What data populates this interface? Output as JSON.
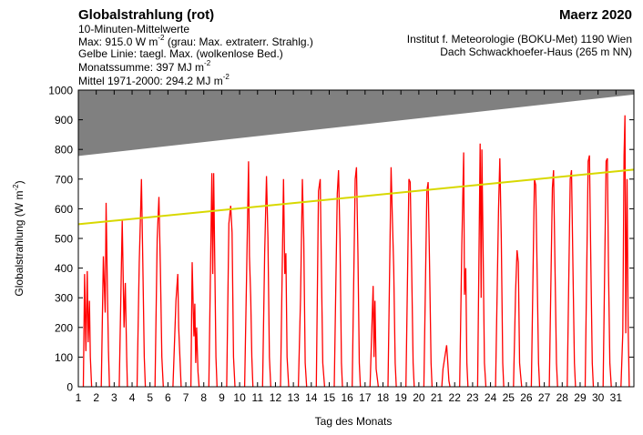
{
  "header": {
    "title": "Globalstrahlung (rot)",
    "period": "Maerz 2020",
    "sub1": "10-Minuten-Mittelwerte",
    "max_prefix": "Max:  915.0 W m",
    "max_exp": "-2",
    "max_suffix": "  (grau: Max. extraterr. Strahlg.)",
    "yellow_line": "Gelbe Linie: taegl. Max. (wolkenlose Bed.)",
    "month_sum_prefix": "Monatssumme:  397 MJ m",
    "month_sum_exp": "-2",
    "mean_prefix": "Mittel 1971-2000:  294.2 MJ m",
    "mean_exp": "-2",
    "institute": "Institut f. Meteorologie (BOKU-Met) 1190 Wien",
    "location": "Dach Schwackhoefer-Haus (265 m NN)"
  },
  "chart_data": {
    "type": "line",
    "xlabel": "Tag des Monats",
    "ylabel": "Globalstrahlung (W m-2)",
    "ylabel_prefix": "Globalstrahlung (W m",
    "ylabel_exp": "-2",
    "ylabel_suffix": ")",
    "xlim": [
      1,
      32
    ],
    "ylim": [
      0,
      1000
    ],
    "y_ticks": [
      0,
      100,
      200,
      300,
      400,
      500,
      600,
      700,
      800,
      900,
      1000
    ],
    "x_ticks": [
      "1",
      "2",
      "3",
      "4",
      "5",
      "6",
      "7",
      "8",
      "9",
      "10",
      "11",
      "12",
      "13",
      "14",
      "15",
      "16",
      "17",
      "18",
      "19",
      "20",
      "21",
      "22",
      "23",
      "24",
      "25",
      "26",
      "27",
      "28",
      "29",
      "30",
      "31"
    ],
    "grid": false,
    "series": [
      {
        "name": "Max. extraterr. Strahlg.",
        "color": "#808080",
        "style": "filled area above line",
        "x": [
          1,
          32
        ],
        "y": [
          778,
          985
        ]
      },
      {
        "name": "taegl. Max. (wolkenlose Bed.)",
        "color": "#d8d800",
        "x": [
          1,
          32
        ],
        "y": [
          548,
          732
        ]
      },
      {
        "name": "Globalstrahlung",
        "color": "#ff0000",
        "style": "10-minute means",
        "days": [
          {
            "day": 1,
            "peaks": [
              [
                0.35,
                380
              ],
              [
                0.42,
                120
              ],
              [
                0.5,
                390
              ],
              [
                0.55,
                150
              ],
              [
                0.62,
                290
              ],
              [
                0.67,
                100
              ]
            ]
          },
          {
            "day": 2,
            "peaks": [
              [
                0.4,
                440
              ],
              [
                0.5,
                250
              ],
              [
                0.55,
                620
              ],
              [
                0.62,
                330
              ],
              [
                0.68,
                120
              ]
            ]
          },
          {
            "day": 3,
            "peaks": [
              [
                0.45,
                560
              ],
              [
                0.55,
                200
              ],
              [
                0.62,
                350
              ],
              [
                0.7,
                100
              ]
            ]
          },
          {
            "day": 4,
            "peaks": [
              [
                0.4,
                420
              ],
              [
                0.47,
                580
              ],
              [
                0.52,
                700
              ],
              [
                0.6,
                420
              ],
              [
                0.68,
                100
              ]
            ]
          },
          {
            "day": 5,
            "peaks": [
              [
                0.4,
                500
              ],
              [
                0.5,
                640
              ],
              [
                0.58,
                400
              ],
              [
                0.66,
                100
              ]
            ]
          },
          {
            "day": 6,
            "peaks": [
              [
                0.45,
                290
              ],
              [
                0.55,
                380
              ],
              [
                0.6,
                200
              ],
              [
                0.68,
                80
              ]
            ]
          },
          {
            "day": 7,
            "peaks": [
              [
                0.35,
                420
              ],
              [
                0.45,
                170
              ],
              [
                0.5,
                280
              ],
              [
                0.55,
                80
              ],
              [
                0.6,
                200
              ],
              [
                0.68,
                50
              ]
            ]
          },
          {
            "day": 8,
            "peaks": [
              [
                0.45,
                720
              ],
              [
                0.5,
                380
              ],
              [
                0.55,
                720
              ],
              [
                0.62,
                400
              ],
              [
                0.68,
                100
              ]
            ]
          },
          {
            "day": 9,
            "peaks": [
              [
                0.4,
                550
              ],
              [
                0.5,
                610
              ],
              [
                0.58,
                520
              ],
              [
                0.66,
                100
              ]
            ]
          },
          {
            "day": 10,
            "peaks": [
              [
                0.4,
                420
              ],
              [
                0.5,
                760
              ],
              [
                0.55,
                440
              ],
              [
                0.62,
                300
              ],
              [
                0.68,
                100
              ]
            ]
          },
          {
            "day": 11,
            "peaks": [
              [
                0.4,
                450
              ],
              [
                0.5,
                710
              ],
              [
                0.58,
                500
              ],
              [
                0.66,
                100
              ]
            ]
          },
          {
            "day": 12,
            "peaks": [
              [
                0.45,
                700
              ],
              [
                0.52,
                380
              ],
              [
                0.58,
                450
              ],
              [
                0.65,
                100
              ]
            ]
          },
          {
            "day": 13,
            "peaks": [
              [
                0.4,
                300
              ],
              [
                0.5,
                700
              ],
              [
                0.58,
                500
              ],
              [
                0.66,
                80
              ]
            ]
          },
          {
            "day": 14,
            "peaks": [
              [
                0.4,
                660
              ],
              [
                0.5,
                700
              ],
              [
                0.56,
                420
              ],
              [
                0.64,
                80
              ]
            ]
          },
          {
            "day": 15,
            "peaks": [
              [
                0.45,
                650
              ],
              [
                0.52,
                730
              ],
              [
                0.6,
                500
              ],
              [
                0.68,
                80
              ]
            ]
          },
          {
            "day": 16,
            "peaks": [
              [
                0.45,
                700
              ],
              [
                0.52,
                740
              ],
              [
                0.6,
                450
              ],
              [
                0.68,
                80
              ]
            ]
          },
          {
            "day": 17,
            "peaks": [
              [
                0.45,
                340
              ],
              [
                0.5,
                100
              ],
              [
                0.55,
                290
              ],
              [
                0.62,
                60
              ]
            ]
          },
          {
            "day": 18,
            "peaks": [
              [
                0.45,
                740
              ],
              [
                0.52,
                580
              ],
              [
                0.6,
                400
              ],
              [
                0.68,
                80
              ]
            ]
          },
          {
            "day": 19,
            "peaks": [
              [
                0.45,
                700
              ],
              [
                0.52,
                690
              ],
              [
                0.6,
                400
              ],
              [
                0.68,
                80
              ]
            ]
          },
          {
            "day": 20,
            "peaks": [
              [
                0.45,
                660
              ],
              [
                0.52,
                690
              ],
              [
                0.6,
                400
              ],
              [
                0.68,
                80
              ]
            ]
          },
          {
            "day": 21,
            "peaks": [
              [
                0.35,
                60
              ],
              [
                0.45,
                100
              ],
              [
                0.55,
                140
              ],
              [
                0.62,
                80
              ],
              [
                0.68,
                20
              ]
            ]
          },
          {
            "day": 22,
            "peaks": [
              [
                0.4,
                480
              ],
              [
                0.5,
                790
              ],
              [
                0.55,
                310
              ],
              [
                0.62,
                400
              ],
              [
                0.68,
                80
              ]
            ]
          },
          {
            "day": 23,
            "peaks": [
              [
                0.42,
                820
              ],
              [
                0.48,
                300
              ],
              [
                0.52,
                800
              ],
              [
                0.58,
                500
              ],
              [
                0.66,
                80
              ]
            ]
          },
          {
            "day": 24,
            "peaks": [
              [
                0.45,
                600
              ],
              [
                0.52,
                770
              ],
              [
                0.6,
                500
              ],
              [
                0.68,
                80
              ]
            ]
          },
          {
            "day": 25,
            "peaks": [
              [
                0.4,
                320
              ],
              [
                0.48,
                460
              ],
              [
                0.55,
                420
              ],
              [
                0.62,
                80
              ],
              [
                0.68,
                40
              ]
            ]
          },
          {
            "day": 26,
            "peaks": [
              [
                0.45,
                700
              ],
              [
                0.52,
                680
              ],
              [
                0.6,
                400
              ],
              [
                0.68,
                80
              ]
            ]
          },
          {
            "day": 27,
            "peaks": [
              [
                0.45,
                670
              ],
              [
                0.52,
                730
              ],
              [
                0.6,
                400
              ],
              [
                0.68,
                80
              ]
            ]
          },
          {
            "day": 28,
            "peaks": [
              [
                0.45,
                700
              ],
              [
                0.52,
                730
              ],
              [
                0.6,
                400
              ],
              [
                0.68,
                80
              ]
            ]
          },
          {
            "day": 29,
            "peaks": [
              [
                0.45,
                760
              ],
              [
                0.52,
                780
              ],
              [
                0.6,
                400
              ],
              [
                0.68,
                80
              ]
            ]
          },
          {
            "day": 30,
            "peaks": [
              [
                0.45,
                760
              ],
              [
                0.52,
                770
              ],
              [
                0.58,
                400
              ],
              [
                0.66,
                80
              ]
            ]
          },
          {
            "day": 31,
            "peaks": [
              [
                0.38,
                180
              ],
              [
                0.45,
                780
              ],
              [
                0.5,
                915
              ],
              [
                0.55,
                180
              ],
              [
                0.62,
                700
              ],
              [
                0.68,
                200
              ]
            ]
          }
        ]
      }
    ]
  }
}
